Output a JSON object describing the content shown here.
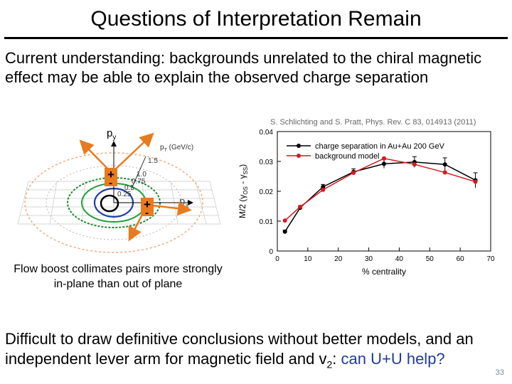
{
  "slide": {
    "title": "Questions of Interpretation Remain",
    "intro": "Current understanding: backgrounds unrelated to the chiral magnetic effect may be able to explain the observed charge separation",
    "caption": "Flow boost collimates pairs more strongly in-plane than out of plane",
    "conclusion_part1": "Difficult to draw definitive conclusions without better models, and an independent lever arm for magnetic field and v",
    "conclusion_sub": "2",
    "conclusion_part2": ": ",
    "conclusion_highlight": "can U+U help?",
    "page_number": "33",
    "highlight_color": "#1f3c9a"
  },
  "diagram": {
    "axis_py_main": "p",
    "axis_py_sub": "y",
    "axis_px_main": "p",
    "axis_px_sub": "x",
    "pt_label": "p",
    "pt_label_sub": "T",
    "pt_label_unit": " (GeV/c)",
    "contour_labels": [
      "1.5",
      "1.0",
      "0.75",
      "0.5",
      "0.25"
    ],
    "plus_sign": "+",
    "minus_sign": "-"
  },
  "chart_data": {
    "type": "line",
    "citation": "S. Schlichting and S. Pratt, Phys. Rev. C 83, 014913 (2011)",
    "xlabel": "% centrality",
    "ylabel_main": "M/2 (γ",
    "ylabel_os": "OS",
    "ylabel_mid": " - γ",
    "ylabel_ss": "SS",
    "ylabel_end": ")",
    "xlim": [
      0,
      70
    ],
    "ylim": [
      0,
      0.04
    ],
    "xticks": [
      0,
      10,
      20,
      30,
      40,
      50,
      60,
      70
    ],
    "yticks": [
      0,
      0.01,
      0.02,
      0.03,
      0.04
    ],
    "ytick_labels": [
      "0",
      "0.01",
      "0.02",
      "0.03",
      "0.04"
    ],
    "legend_position": "top",
    "series": [
      {
        "name": "charge separation in Au+Au 200 GeV",
        "color": "#000000",
        "x": [
          2.5,
          7.5,
          15,
          25,
          35,
          45,
          55,
          65
        ],
        "y": [
          0.0065,
          0.0145,
          0.0215,
          0.0265,
          0.0292,
          0.0298,
          0.029,
          0.0237
        ],
        "err": [
          0.0005,
          0.0007,
          0.0008,
          0.001,
          0.0015,
          0.0018,
          0.0022,
          0.0025
        ]
      },
      {
        "name": "background model",
        "color": "#d7191c",
        "x": [
          2.5,
          7.5,
          15,
          25,
          35,
          45,
          55,
          65
        ],
        "y": [
          0.0102,
          0.0148,
          0.0205,
          0.0262,
          0.031,
          0.029,
          0.0263,
          0.0232
        ]
      }
    ]
  }
}
